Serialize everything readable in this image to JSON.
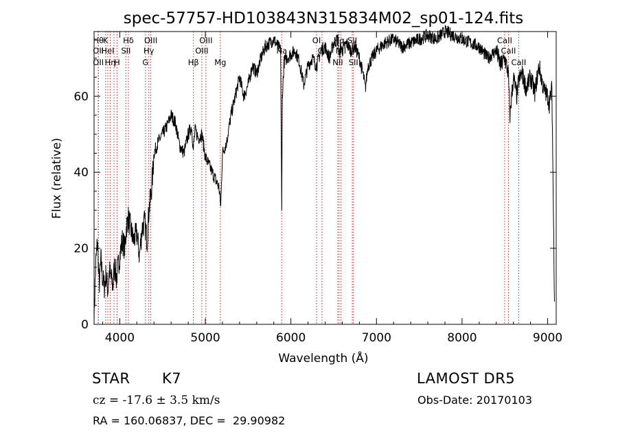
{
  "chart_data": {
    "type": "line",
    "title": "spec-57757-HD103843N315834M02_sp01-124.fits",
    "xlabel": "Wavelength (Å)",
    "ylabel": "Flux (relative)",
    "xlim": [
      3700,
      9100
    ],
    "ylim": [
      0,
      77
    ],
    "x_ticks": [
      4000,
      5000,
      6000,
      7000,
      8000,
      9000
    ],
    "x_tick_labels": [
      "4000",
      "5000",
      "6000",
      "7000",
      "8000",
      "9000"
    ],
    "y_ticks": [
      0,
      20,
      40,
      60
    ],
    "y_tick_labels": [
      "0",
      "20",
      "40",
      "60"
    ],
    "grid": false,
    "line_color": "#000000",
    "marker_color": "#b22222",
    "spectrum": {
      "x": [
        3700,
        3720,
        3740,
        3760,
        3780,
        3800,
        3820,
        3840,
        3860,
        3880,
        3900,
        3920,
        3940,
        3960,
        3980,
        4000,
        4030,
        4060,
        4080,
        4100,
        4130,
        4160,
        4200,
        4230,
        4260,
        4290,
        4320,
        4340,
        4360,
        4380,
        4400,
        4450,
        4500,
        4550,
        4600,
        4650,
        4700,
        4750,
        4800,
        4840,
        4860,
        4880,
        4920,
        4960,
        5000,
        5040,
        5080,
        5120,
        5160,
        5180,
        5200,
        5250,
        5300,
        5350,
        5400,
        5450,
        5500,
        5550,
        5600,
        5650,
        5700,
        5750,
        5800,
        5850,
        5880,
        5893,
        5900,
        5920,
        5950,
        6000,
        6050,
        6100,
        6150,
        6200,
        6250,
        6300,
        6350,
        6400,
        6450,
        6500,
        6550,
        6563,
        6580,
        6600,
        6650,
        6700,
        6750,
        6800,
        6850,
        6870,
        6900,
        6950,
        7000,
        7100,
        7200,
        7300,
        7400,
        7500,
        7600,
        7700,
        7800,
        7900,
        8000,
        8100,
        8200,
        8300,
        8400,
        8450,
        8500,
        8540,
        8560,
        8600,
        8640,
        8662,
        8700,
        8750,
        8800,
        8850,
        8900,
        8950,
        9000,
        9020,
        9050,
        9080
      ],
      "y": [
        2,
        16,
        22,
        10,
        17,
        12,
        10,
        13,
        9,
        14,
        12,
        10,
        16,
        12,
        15,
        18,
        22,
        20,
        26,
        28,
        25,
        22,
        24,
        18,
        25,
        27,
        22,
        30,
        33,
        38,
        45,
        48,
        50,
        52,
        55,
        53,
        47,
        45,
        50,
        52,
        46,
        51,
        49,
        50,
        44,
        42,
        40,
        38,
        36,
        31,
        45,
        48,
        55,
        60,
        65,
        60,
        63,
        68,
        66,
        70,
        73,
        74,
        75,
        73,
        72,
        29,
        60,
        69,
        70,
        71,
        72,
        69,
        63,
        68,
        70,
        68,
        72,
        73,
        70,
        74,
        75,
        70,
        73,
        72,
        74,
        72,
        73,
        70,
        65,
        62,
        68,
        70,
        72,
        74,
        75,
        73,
        74,
        75,
        76,
        75,
        77,
        76,
        75,
        74,
        73,
        70,
        72,
        68,
        70,
        66,
        55,
        65,
        60,
        64,
        66,
        62,
        65,
        61,
        68,
        62,
        60,
        58,
        62,
        6
      ]
    },
    "line_markers": [
      {
        "x": 3750,
        "row": 1,
        "label": "Hθ"
      },
      {
        "x": 3750,
        "row": 2,
        "label": "OII"
      },
      {
        "x": 3750,
        "row": 3,
        "label": "OII"
      },
      {
        "x": 3835,
        "row": 1,
        "label": "K"
      },
      {
        "x": 3860,
        "row": 2,
        "label": "HeI"
      },
      {
        "x": 3889,
        "row": 3,
        "label": "Hη"
      },
      {
        "x": 3933,
        "row": 1,
        "label": ""
      },
      {
        "x": 3968,
        "row": 3,
        "label": "H"
      },
      {
        "x": 4101,
        "row": 1,
        "label": "Hδ"
      },
      {
        "x": 4072,
        "row": 2,
        "label": "SII"
      },
      {
        "x": 4300,
        "row": 3,
        "label": "G"
      },
      {
        "x": 4340,
        "row": 2,
        "label": "Hγ"
      },
      {
        "x": 4363,
        "row": 1,
        "label": "OIII"
      },
      {
        "x": 4861,
        "row": 3,
        "label": "Hβ"
      },
      {
        "x": 4959,
        "row": 2,
        "label": "OIII"
      },
      {
        "x": 5007,
        "row": 1,
        "label": "OIII"
      },
      {
        "x": 5175,
        "row": 3,
        "label": "Mg"
      },
      {
        "x": 5893,
        "row": 2,
        "label": "Na"
      },
      {
        "x": 6300,
        "row": 1,
        "label": "OI"
      },
      {
        "x": 6363,
        "row": 2,
        "label": "OI"
      },
      {
        "x": 6548,
        "row": 3,
        "label": "NII"
      },
      {
        "x": 6563,
        "row": 1,
        "label": "Hα"
      },
      {
        "x": 6584,
        "row": 2,
        "label": "NII"
      },
      {
        "x": 6717,
        "row": 1,
        "label": "SII"
      },
      {
        "x": 6731,
        "row": 3,
        "label": "SII"
      },
      {
        "x": 8498,
        "row": 1,
        "label": "CaII"
      },
      {
        "x": 8542,
        "row": 2,
        "label": "CaII"
      },
      {
        "x": 8662,
        "row": 3,
        "label": "CaII"
      }
    ]
  },
  "info": {
    "object_class": "STAR",
    "subclass": "K7",
    "survey": "LAMOST DR5",
    "redshift": "cz = -17.6 ± 3.5 km/s",
    "obs_date": "Obs-Date: 20170103",
    "coords": "RA = 160.06837, DEC =  29.90982"
  }
}
